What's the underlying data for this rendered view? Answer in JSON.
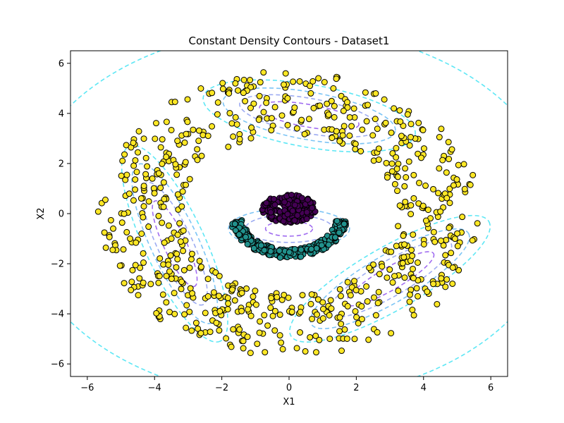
{
  "chart_data": {
    "type": "scatter",
    "title": "Constant Density Contours - Dataset1",
    "xlabel": "X1",
    "ylabel": "X2",
    "xlim": [
      -6.5,
      6.5
    ],
    "ylim": [
      -6.5,
      6.5
    ],
    "xticks": [
      -6,
      -4,
      -2,
      0,
      2,
      4,
      6
    ],
    "yticks": [
      -6,
      -4,
      -2,
      0,
      2,
      4,
      6
    ],
    "grid": false,
    "colors": {
      "outer_points": "#fde725",
      "arc_points": "#21918c",
      "center_points": "#440154",
      "contour_colors": [
        "#a06cf0",
        "#9dabf2",
        "#7cc4f5",
        "#5ee7f5"
      ]
    },
    "series": [
      {
        "kind": "points",
        "shape": "ring",
        "center": [
          0,
          0
        ],
        "radius_range": [
          3.2,
          5.7
        ],
        "count": 700,
        "color": "#fde725"
      },
      {
        "kind": "points",
        "shape": "arc",
        "center": [
          0,
          0
        ],
        "radius": 1.6,
        "angle_range_deg": [
          190,
          350
        ],
        "count": 280,
        "color": "#21918c"
      },
      {
        "kind": "points",
        "shape": "disk",
        "center": [
          0,
          0.2
        ],
        "radius": 0.8,
        "count": 200,
        "color": "#440154"
      }
    ],
    "contours": [
      {
        "center": [
          0.6,
          3.9
        ],
        "rx": [
          1.5,
          2.1,
          2.6,
          3.2
        ],
        "ry": [
          0.45,
          0.7,
          0.95,
          1.25
        ],
        "angle_deg": -10
      },
      {
        "center": [
          -3.4,
          -1.2
        ],
        "rx": [
          1.4,
          2.0,
          2.6,
          3.2
        ],
        "ry": [
          0.45,
          0.7,
          0.95,
          1.2
        ],
        "angle_deg": -65
      },
      {
        "center": [
          3.0,
          -2.6
        ],
        "rx": [
          1.5,
          2.1,
          2.7,
          3.4
        ],
        "ry": [
          0.45,
          0.7,
          0.95,
          1.25
        ],
        "angle_deg": 30
      },
      {
        "center": [
          0,
          -0.6
        ],
        "rx": [
          0.7,
          1.3,
          1.8
        ],
        "ry": [
          0.3,
          0.55,
          0.8
        ],
        "angle_deg": 0
      }
    ]
  }
}
